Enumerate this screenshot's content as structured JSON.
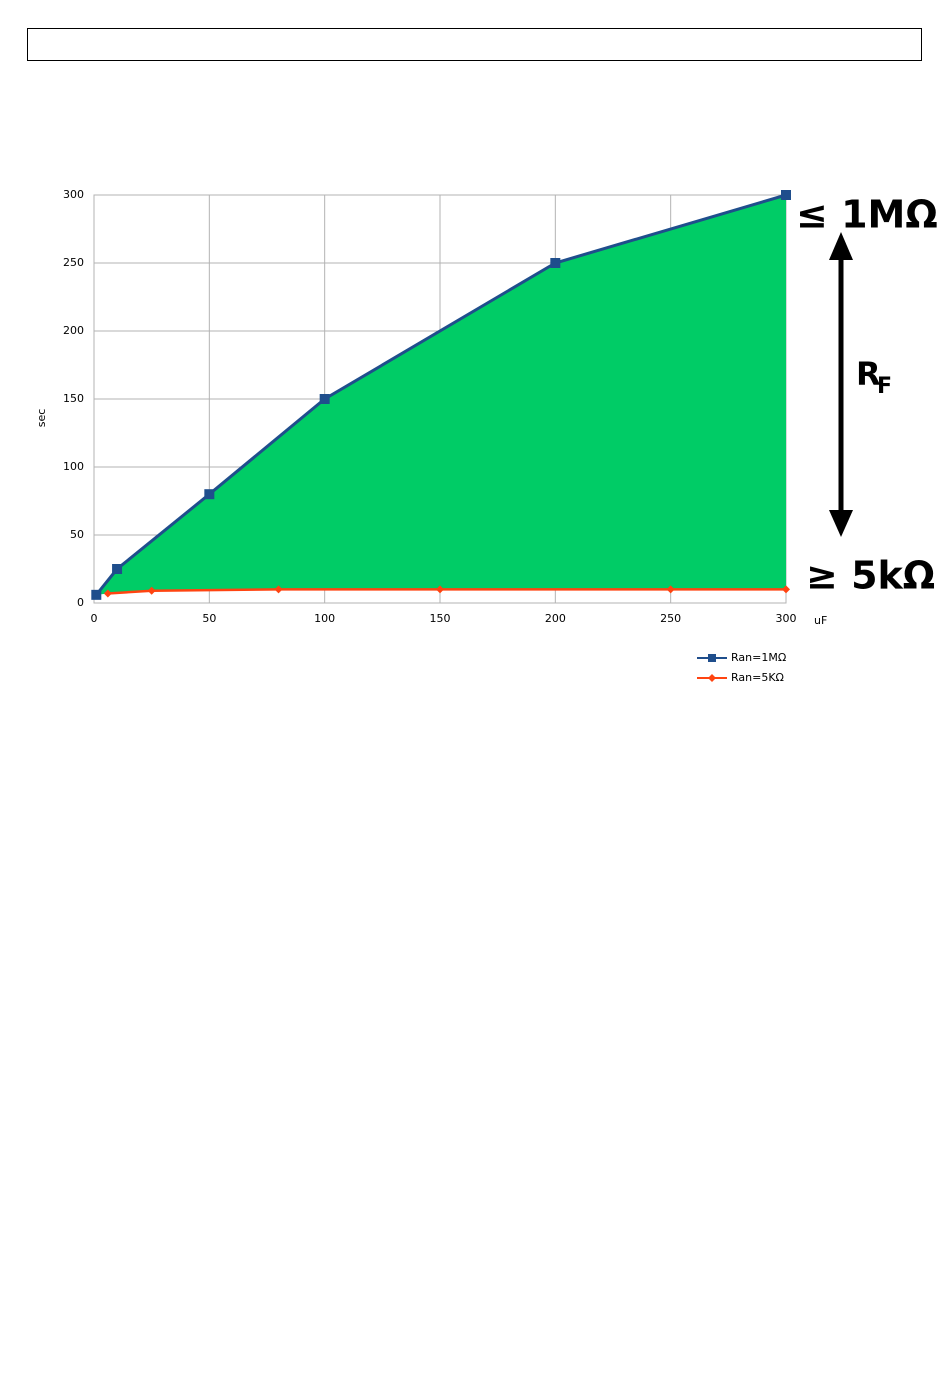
{
  "chart_data": {
    "type": "line",
    "x_label": "uF",
    "y_label": "sec",
    "xlim": [
      0,
      300
    ],
    "xticks": [
      0,
      50,
      100,
      150,
      200,
      250,
      300
    ],
    "ylim": [
      0,
      300
    ],
    "yticks": [
      0,
      50,
      100,
      150,
      200,
      250,
      300
    ],
    "grid": true,
    "fill_color": "#00cc66",
    "series": [
      {
        "name": "Ran=1MΩ",
        "color": "#1f4e8c",
        "marker": "square",
        "x": [
          1,
          10,
          50,
          100,
          200,
          300
        ],
        "values": [
          6,
          25,
          80,
          150,
          250,
          300
        ]
      },
      {
        "name": "Ran=5KΩ",
        "color": "#ff4411",
        "marker": "diamond",
        "x": [
          6,
          25,
          80,
          150,
          250,
          300
        ],
        "values": [
          7,
          9,
          10,
          10,
          10,
          10
        ]
      }
    ],
    "annotations": {
      "top": "≤ 1MΩ",
      "bottom": "≥ 5kΩ",
      "rf_main": "R",
      "rf_sub": "F"
    }
  }
}
